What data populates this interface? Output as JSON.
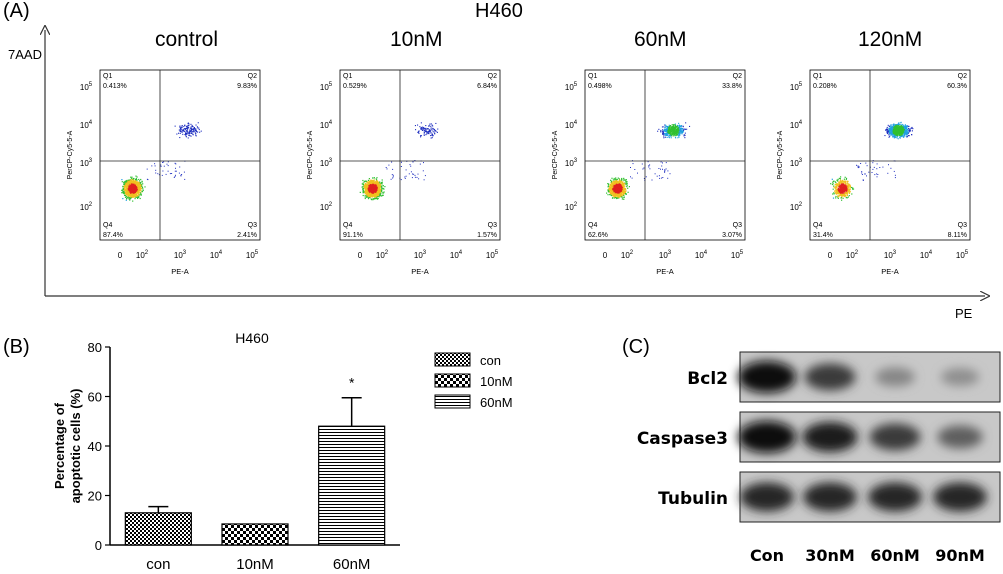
{
  "panelA": {
    "letter": "(A)",
    "title": "H460",
    "y_axis_label": "7AAD",
    "x_axis_label": "PE",
    "plots": [
      {
        "condition": "control",
        "q1": "0.413%",
        "q2": "9.83%",
        "q3": "2.41%",
        "q4": "87.4%"
      },
      {
        "condition": "10nM",
        "q1": "0.529%",
        "q2": "6.84%",
        "q3": "1.57%",
        "q4": "91.1%"
      },
      {
        "condition": "60nM",
        "q1": "0.498%",
        "q2": "33.8%",
        "q3": "3.07%",
        "q4": "62.6%"
      },
      {
        "condition": "120nM",
        "q1": "0.208%",
        "q2": "60.3%",
        "q3": "8.11%",
        "q4": "31.4%"
      }
    ],
    "flow_labels": {
      "q1": "Q1",
      "q2": "Q2",
      "q3": "Q3",
      "q4": "Q4",
      "x_axis": "PE-A",
      "y_axis": "PerCP-Cy5-5-A",
      "x_ticks": [
        "0",
        "10",
        "10",
        "10",
        "10"
      ],
      "x_tick_exps": [
        "",
        "2",
        "3",
        "4",
        "5"
      ],
      "y_ticks": [
        "10",
        "10",
        "10",
        "10"
      ],
      "y_tick_exps": [
        "2",
        "3",
        "4",
        "5"
      ]
    }
  },
  "panelB": {
    "letter": "(B)"
  },
  "panelC": {
    "letter": "(C)",
    "rows": [
      "Bcl2",
      "Caspase3",
      "Tubulin"
    ],
    "lanes": [
      "Con",
      "30nM",
      "60nM",
      "90nM"
    ],
    "intensities": [
      [
        1.0,
        0.75,
        0.35,
        0.3
      ],
      [
        1.0,
        0.9,
        0.75,
        0.55
      ],
      [
        0.85,
        0.85,
        0.85,
        0.85
      ]
    ]
  },
  "chart_data": {
    "type": "bar",
    "title": "H460",
    "categories": [
      "con",
      "10nM",
      "60nM"
    ],
    "values": [
      13,
      8.5,
      48
    ],
    "errors": [
      2.5,
      0,
      11.5
    ],
    "ylabel": "Percentage of apoptotic cells (%)",
    "ylim": [
      0,
      80
    ],
    "yticks": [
      0,
      20,
      40,
      60,
      80
    ],
    "legend": [
      "con",
      "10nM",
      "60nM"
    ],
    "legend_position": "top-right",
    "annotation": "*"
  }
}
